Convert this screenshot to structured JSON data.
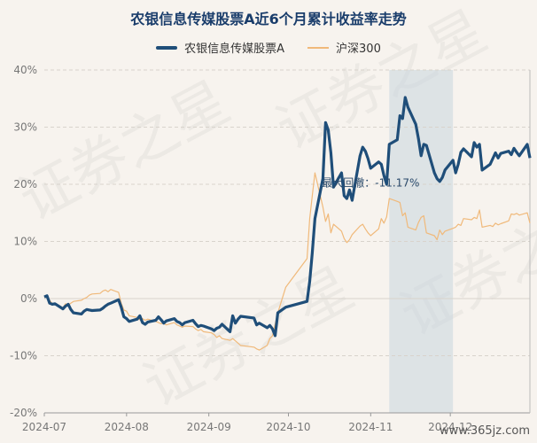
{
  "chart_data": {
    "type": "line",
    "title": "农银信息传媒股票A近6个月累计收益率走势",
    "ylim": [
      -20,
      40
    ],
    "yticks": [
      "40%",
      "30%",
      "20%",
      "10%",
      "0%",
      "-10%",
      "-20%"
    ],
    "ytick_values": [
      40,
      30,
      20,
      10,
      0,
      -10,
      -20
    ],
    "xticks": [
      "2024-07",
      "2024-08",
      "2024-09",
      "2024-10",
      "2024-11",
      "2024-12"
    ],
    "x_start": "2024-07-01",
    "x_end": "2024-12-31",
    "grid": true,
    "legend_position": "top",
    "annotation": {
      "label": "最大回撤：-11.17%",
      "start": "2024-11-08",
      "end": "2024-12-02"
    },
    "series": [
      {
        "name": "农银信息传媒股票A",
        "color": "#1f4e79",
        "points": [
          [
            "2024-07-01",
            0.3
          ],
          [
            "2024-07-02",
            0.5
          ],
          [
            "2024-07-03",
            -0.8
          ],
          [
            "2024-07-04",
            -1.0
          ],
          [
            "2024-07-05",
            -0.9
          ],
          [
            "2024-07-08",
            -1.8
          ],
          [
            "2024-07-09",
            -1.3
          ],
          [
            "2024-07-10",
            -1.0
          ],
          [
            "2024-07-11",
            -1.9
          ],
          [
            "2024-07-12",
            -2.5
          ],
          [
            "2024-07-15",
            -2.7
          ],
          [
            "2024-07-16",
            -2.2
          ],
          [
            "2024-07-17",
            -1.9
          ],
          [
            "2024-07-18",
            -2.0
          ],
          [
            "2024-07-19",
            -2.1
          ],
          [
            "2024-07-22",
            -2.0
          ],
          [
            "2024-07-23",
            -1.7
          ],
          [
            "2024-07-24",
            -1.3
          ],
          [
            "2024-07-25",
            -1.0
          ],
          [
            "2024-07-26",
            -0.8
          ],
          [
            "2024-07-29",
            -0.2
          ],
          [
            "2024-07-30",
            -1.5
          ],
          [
            "2024-07-31",
            -3.2
          ],
          [
            "2024-08-01",
            -3.5
          ],
          [
            "2024-08-02",
            -4.0
          ],
          [
            "2024-08-05",
            -3.6
          ],
          [
            "2024-08-06",
            -3.0
          ],
          [
            "2024-08-07",
            -4.2
          ],
          [
            "2024-08-08",
            -4.5
          ],
          [
            "2024-08-09",
            -4.1
          ],
          [
            "2024-08-12",
            -3.8
          ],
          [
            "2024-08-13",
            -3.2
          ],
          [
            "2024-08-14",
            -3.7
          ],
          [
            "2024-08-15",
            -4.3
          ],
          [
            "2024-08-16",
            -3.9
          ],
          [
            "2024-08-19",
            -3.5
          ],
          [
            "2024-08-20",
            -4.0
          ],
          [
            "2024-08-21",
            -4.2
          ],
          [
            "2024-08-22",
            -4.6
          ],
          [
            "2024-08-23",
            -4.2
          ],
          [
            "2024-08-26",
            -3.8
          ],
          [
            "2024-08-27",
            -4.4
          ],
          [
            "2024-08-28",
            -4.9
          ],
          [
            "2024-08-29",
            -4.7
          ],
          [
            "2024-08-30",
            -4.8
          ],
          [
            "2024-09-02",
            -5.3
          ],
          [
            "2024-09-03",
            -5.6
          ],
          [
            "2024-09-04",
            -5.2
          ],
          [
            "2024-09-05",
            -5.0
          ],
          [
            "2024-09-06",
            -4.5
          ],
          [
            "2024-09-09",
            -5.8
          ],
          [
            "2024-09-10",
            -3.0
          ],
          [
            "2024-09-11",
            -4.3
          ],
          [
            "2024-09-12",
            -3.6
          ],
          [
            "2024-09-13",
            -3.1
          ],
          [
            "2024-09-18",
            -3.4
          ],
          [
            "2024-09-19",
            -4.6
          ],
          [
            "2024-09-20",
            -4.3
          ],
          [
            "2024-09-23",
            -5.1
          ],
          [
            "2024-09-24",
            -4.7
          ],
          [
            "2024-09-25",
            -5.3
          ],
          [
            "2024-09-26",
            -6.5
          ],
          [
            "2024-09-27",
            -2.5
          ],
          [
            "2024-09-30",
            -1.5
          ],
          [
            "2024-10-08",
            -0.5
          ],
          [
            "2024-10-09",
            3.0
          ],
          [
            "2024-10-10",
            8.0
          ],
          [
            "2024-10-11",
            14.0
          ],
          [
            "2024-10-14",
            21.0
          ],
          [
            "2024-10-15",
            30.8
          ],
          [
            "2024-10-16",
            29.5
          ],
          [
            "2024-10-17",
            25.5
          ],
          [
            "2024-10-18",
            19.5
          ],
          [
            "2024-10-21",
            22.0
          ],
          [
            "2024-10-22",
            18.0
          ],
          [
            "2024-10-23",
            17.5
          ],
          [
            "2024-10-24",
            19.0
          ],
          [
            "2024-10-25",
            17.2
          ],
          [
            "2024-10-28",
            25.0
          ],
          [
            "2024-10-29",
            26.5
          ],
          [
            "2024-10-30",
            25.8
          ],
          [
            "2024-10-31",
            24.5
          ],
          [
            "2024-11-01",
            22.8
          ],
          [
            "2024-11-04",
            23.9
          ],
          [
            "2024-11-05",
            23.5
          ],
          [
            "2024-11-06",
            21.5
          ],
          [
            "2024-11-07",
            20.0
          ],
          [
            "2024-11-08",
            27.0
          ],
          [
            "2024-11-11",
            27.8
          ],
          [
            "2024-11-12",
            32.0
          ],
          [
            "2024-11-13",
            31.5
          ],
          [
            "2024-11-14",
            35.2
          ],
          [
            "2024-11-15",
            33.5
          ],
          [
            "2024-11-18",
            30.5
          ],
          [
            "2024-11-19",
            28.0
          ],
          [
            "2024-11-20",
            25.0
          ],
          [
            "2024-11-21",
            27.0
          ],
          [
            "2024-11-22",
            26.8
          ],
          [
            "2024-11-25",
            22.0
          ],
          [
            "2024-11-26",
            21.0
          ],
          [
            "2024-11-27",
            20.5
          ],
          [
            "2024-11-28",
            21.2
          ],
          [
            "2024-11-29",
            22.5
          ],
          [
            "2024-12-02",
            24.2
          ],
          [
            "2024-12-03",
            22.0
          ],
          [
            "2024-12-04",
            23.5
          ],
          [
            "2024-12-05",
            25.6
          ],
          [
            "2024-12-06",
            26.2
          ],
          [
            "2024-12-09",
            24.8
          ],
          [
            "2024-12-10",
            27.3
          ],
          [
            "2024-12-11",
            26.5
          ],
          [
            "2024-12-12",
            27.0
          ],
          [
            "2024-12-13",
            22.5
          ],
          [
            "2024-12-16",
            23.5
          ],
          [
            "2024-12-17",
            24.5
          ],
          [
            "2024-12-18",
            25.5
          ],
          [
            "2024-12-19",
            24.6
          ],
          [
            "2024-12-20",
            25.4
          ],
          [
            "2024-12-23",
            25.8
          ],
          [
            "2024-12-24",
            25.2
          ],
          [
            "2024-12-25",
            26.3
          ],
          [
            "2024-12-26",
            25.6
          ],
          [
            "2024-12-27",
            25.0
          ],
          [
            "2024-12-30",
            27.0
          ],
          [
            "2024-12-31",
            24.6
          ]
        ]
      },
      {
        "name": "沪深300",
        "color": "#f0b97a",
        "points": [
          [
            "2024-07-01",
            0.2
          ],
          [
            "2024-07-02",
            0.4
          ],
          [
            "2024-07-03",
            -0.3
          ],
          [
            "2024-07-04",
            -0.9
          ],
          [
            "2024-07-05",
            -0.8
          ],
          [
            "2024-07-08",
            -1.6
          ],
          [
            "2024-07-09",
            -0.9
          ],
          [
            "2024-07-10",
            -1.2
          ],
          [
            "2024-07-11",
            -0.8
          ],
          [
            "2024-07-12",
            -0.5
          ],
          [
            "2024-07-15",
            -0.3
          ],
          [
            "2024-07-16",
            0.0
          ],
          [
            "2024-07-17",
            0.2
          ],
          [
            "2024-07-18",
            0.6
          ],
          [
            "2024-07-19",
            0.8
          ],
          [
            "2024-07-22",
            0.9
          ],
          [
            "2024-07-23",
            1.3
          ],
          [
            "2024-07-24",
            1.5
          ],
          [
            "2024-07-25",
            1.2
          ],
          [
            "2024-07-26",
            1.6
          ],
          [
            "2024-07-29",
            1.1
          ],
          [
            "2024-07-30",
            -0.8
          ],
          [
            "2024-07-31",
            -2.0
          ],
          [
            "2024-08-01",
            -2.2
          ],
          [
            "2024-08-02",
            -3.0
          ],
          [
            "2024-08-05",
            -3.3
          ],
          [
            "2024-08-06",
            -3.7
          ],
          [
            "2024-08-07",
            -3.5
          ],
          [
            "2024-08-08",
            -3.8
          ],
          [
            "2024-08-09",
            -3.6
          ],
          [
            "2024-08-12",
            -4.0
          ],
          [
            "2024-08-13",
            -4.2
          ],
          [
            "2024-08-14",
            -4.4
          ],
          [
            "2024-08-15",
            -4.3
          ],
          [
            "2024-08-16",
            -4.6
          ],
          [
            "2024-08-19",
            -4.2
          ],
          [
            "2024-08-20",
            -4.6
          ],
          [
            "2024-08-21",
            -4.8
          ],
          [
            "2024-08-22",
            -5.0
          ],
          [
            "2024-08-23",
            -4.8
          ],
          [
            "2024-08-26",
            -4.9
          ],
          [
            "2024-08-27",
            -5.3
          ],
          [
            "2024-08-28",
            -5.6
          ],
          [
            "2024-08-29",
            -5.4
          ],
          [
            "2024-08-30",
            -5.8
          ],
          [
            "2024-09-02",
            -6.0
          ],
          [
            "2024-09-03",
            -6.3
          ],
          [
            "2024-09-04",
            -6.8
          ],
          [
            "2024-09-05",
            -6.5
          ],
          [
            "2024-09-06",
            -7.0
          ],
          [
            "2024-09-09",
            -7.3
          ],
          [
            "2024-09-10",
            -7.0
          ],
          [
            "2024-09-11",
            -7.4
          ],
          [
            "2024-09-12",
            -7.8
          ],
          [
            "2024-09-13",
            -8.2
          ],
          [
            "2024-09-18",
            -8.5
          ],
          [
            "2024-09-19",
            -8.8
          ],
          [
            "2024-09-20",
            -9.0
          ],
          [
            "2024-09-23",
            -8.2
          ],
          [
            "2024-09-24",
            -7.0
          ],
          [
            "2024-09-25",
            -6.5
          ],
          [
            "2024-09-26",
            -4.5
          ],
          [
            "2024-09-27",
            -2.5
          ],
          [
            "2024-09-30",
            2.0
          ],
          [
            "2024-10-08",
            7.0
          ],
          [
            "2024-10-09",
            14.0
          ],
          [
            "2024-10-10",
            18.0
          ],
          [
            "2024-10-11",
            22.0
          ],
          [
            "2024-10-14",
            16.0
          ],
          [
            "2024-10-15",
            13.5
          ],
          [
            "2024-10-16",
            14.8
          ],
          [
            "2024-10-17",
            11.5
          ],
          [
            "2024-10-18",
            13.0
          ],
          [
            "2024-10-21",
            11.8
          ],
          [
            "2024-10-22",
            10.5
          ],
          [
            "2024-10-23",
            9.8
          ],
          [
            "2024-10-24",
            10.3
          ],
          [
            "2024-10-25",
            11.2
          ],
          [
            "2024-10-28",
            12.7
          ],
          [
            "2024-10-29",
            13.0
          ],
          [
            "2024-10-30",
            12.2
          ],
          [
            "2024-10-31",
            11.5
          ],
          [
            "2024-11-01",
            11.0
          ],
          [
            "2024-11-04",
            12.2
          ],
          [
            "2024-11-05",
            14.0
          ],
          [
            "2024-11-06",
            13.2
          ],
          [
            "2024-11-07",
            14.3
          ],
          [
            "2024-11-08",
            17.5
          ],
          [
            "2024-11-11",
            17.0
          ],
          [
            "2024-11-12",
            16.8
          ],
          [
            "2024-11-13",
            14.5
          ],
          [
            "2024-11-14",
            15.0
          ],
          [
            "2024-11-15",
            12.5
          ],
          [
            "2024-11-18",
            12.0
          ],
          [
            "2024-11-19",
            13.3
          ],
          [
            "2024-11-20",
            14.2
          ],
          [
            "2024-11-21",
            14.5
          ],
          [
            "2024-11-22",
            11.5
          ],
          [
            "2024-11-25",
            11.0
          ],
          [
            "2024-11-26",
            10.3
          ],
          [
            "2024-11-27",
            12.0
          ],
          [
            "2024-11-28",
            11.2
          ],
          [
            "2024-11-29",
            11.8
          ],
          [
            "2024-12-02",
            12.3
          ],
          [
            "2024-12-03",
            12.5
          ],
          [
            "2024-12-04",
            13.0
          ],
          [
            "2024-12-05",
            12.8
          ],
          [
            "2024-12-06",
            14.0
          ],
          [
            "2024-12-09",
            13.8
          ],
          [
            "2024-12-10",
            14.2
          ],
          [
            "2024-12-11",
            14.0
          ],
          [
            "2024-12-12",
            15.5
          ],
          [
            "2024-12-13",
            12.5
          ],
          [
            "2024-12-16",
            12.8
          ],
          [
            "2024-12-17",
            12.6
          ],
          [
            "2024-12-18",
            13.2
          ],
          [
            "2024-12-19",
            12.9
          ],
          [
            "2024-12-20",
            13.1
          ],
          [
            "2024-12-23",
            13.6
          ],
          [
            "2024-12-24",
            14.8
          ],
          [
            "2024-12-25",
            14.7
          ],
          [
            "2024-12-26",
            14.9
          ],
          [
            "2024-12-27",
            14.6
          ],
          [
            "2024-12-30",
            15.0
          ],
          [
            "2024-12-31",
            13.2
          ]
        ]
      }
    ]
  },
  "watermark": "证券之星",
  "brand": "www.365jz.com"
}
